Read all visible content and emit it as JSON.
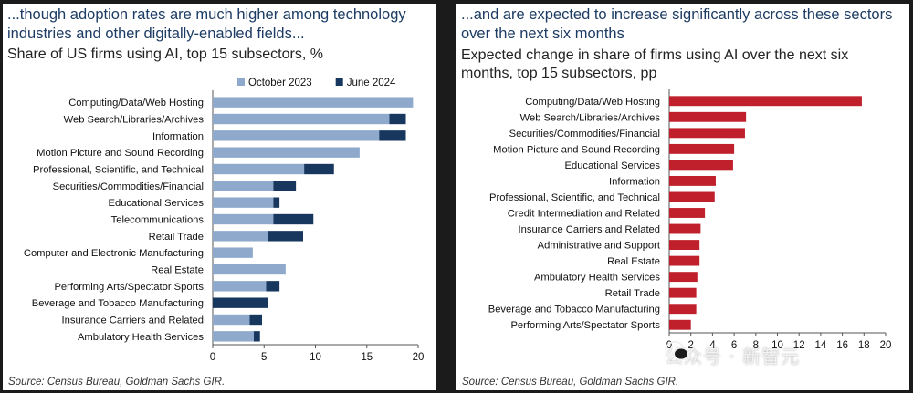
{
  "chart_data": [
    {
      "type": "bar",
      "orientation": "horizontal",
      "stacked": true,
      "headline": "...though adoption rates are much higher among technology industries and other digitally-enabled fields...",
      "title": "Share of US firms using AI, top 15 subsectors, %",
      "categories": [
        "Computing/Data/Web Hosting",
        "Web Search/Libraries/Archives",
        "Information",
        "Motion Picture and Sound Recording",
        "Professional, Scientific, and Technical",
        "Securities/Commodities/Financial",
        "Educational Services",
        "Telecommunications",
        "Retail Trade",
        "Computer and Electronic Manufacturing",
        "Real Estate",
        "Performing Arts/Spectator Sports",
        "Beverage and Tobacco Manufacturing",
        "Insurance Carriers and Related",
        "Ambulatory Health Services"
      ],
      "series": [
        {
          "name": "October 2023",
          "color": "#8ea9cc",
          "values": [
            19.5,
            17.2,
            16.2,
            14.3,
            8.9,
            5.9,
            5.9,
            5.9,
            5.4,
            3.9,
            7.1,
            5.2,
            0,
            3.6,
            4.0
          ]
        },
        {
          "name": "June 2024",
          "color": "#17375e",
          "values": [
            0,
            1.6,
            2.6,
            0,
            2.9,
            2.2,
            0.6,
            3.9,
            3.4,
            0,
            0,
            1.3,
            5.4,
            1.2,
            0.6
          ]
        }
      ],
      "xlim": [
        0,
        20
      ],
      "xticks": [
        "0",
        "5",
        "10",
        "15",
        "20"
      ],
      "legend": "top-right",
      "source": "Source: Census Bureau, Goldman Sachs GIR."
    },
    {
      "type": "bar",
      "orientation": "horizontal",
      "headline": "...and are expected to increase significantly across these sectors over the next six months",
      "title": "Expected change in share of firms using AI over the next six months, top 15 subsectors, pp",
      "categories": [
        "Computing/Data/Web Hosting",
        "Web Search/Libraries/Archives",
        "Securities/Commodities/Financial",
        "Motion Picture and Sound Recording",
        "Educational Services",
        "Information",
        "Professional, Scientific, and Technical",
        "Credit Intermediation and Related",
        "Insurance Carriers and Related",
        "Administrative and Support",
        "Real Estate",
        "Ambulatory Health Services",
        "Retail Trade",
        "Beverage and Tobacco Manufacturing",
        "Performing Arts/Spectator Sports"
      ],
      "values": [
        17.8,
        7.1,
        7.0,
        6.0,
        5.9,
        4.3,
        4.2,
        3.3,
        2.9,
        2.8,
        2.8,
        2.6,
        2.5,
        2.5,
        2.0
      ],
      "color": "#c0202b",
      "xlim": [
        0,
        20
      ],
      "xticks": [
        "0",
        "2",
        "4",
        "6",
        "8",
        "10",
        "12",
        "14",
        "16",
        "18",
        "20"
      ],
      "source": "Source: Census Bureau, Goldman Sachs GIR."
    }
  ],
  "watermark": {
    "text": "公众号 · 新智元",
    "icon": "wechat-icon"
  }
}
